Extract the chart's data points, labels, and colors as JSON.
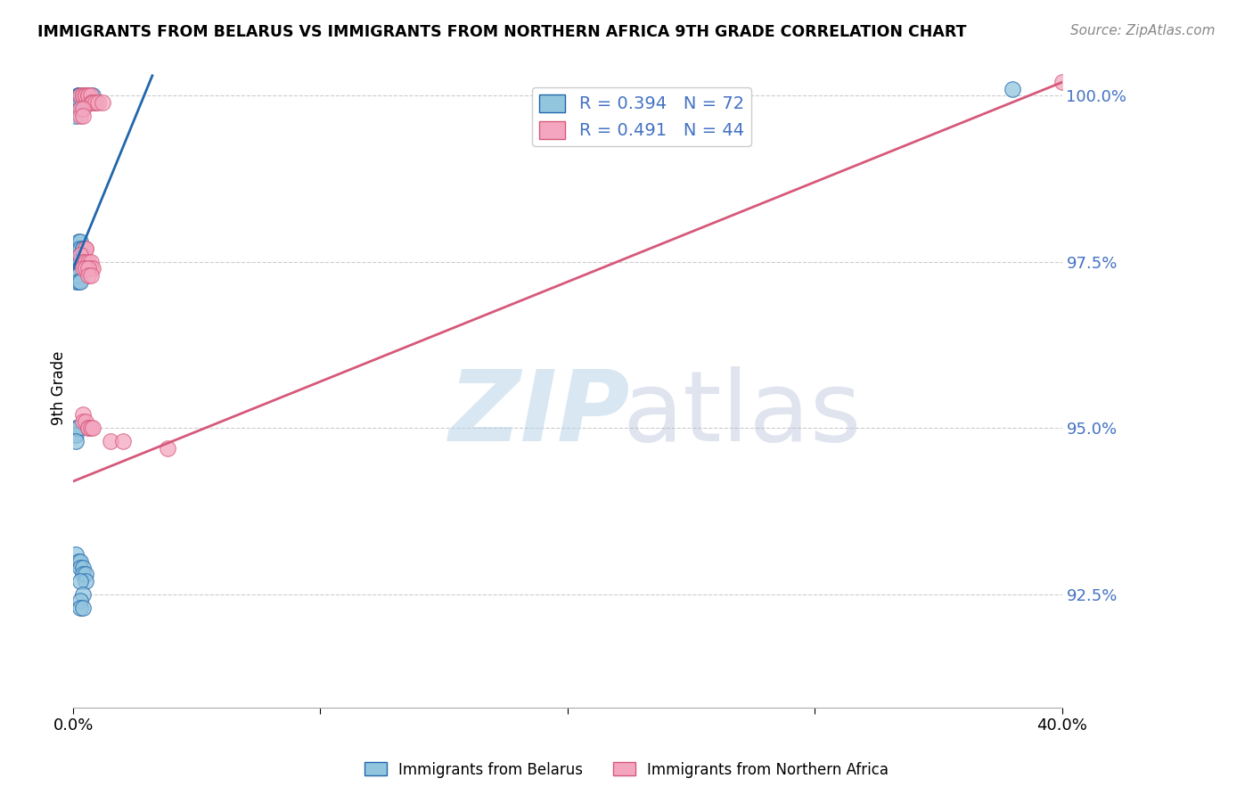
{
  "title": "IMMIGRANTS FROM BELARUS VS IMMIGRANTS FROM NORTHERN AFRICA 9TH GRADE CORRELATION CHART",
  "source": "Source: ZipAtlas.com",
  "ylabel": "9th Grade",
  "x_min": 0.0,
  "x_max": 0.4,
  "y_min": 0.908,
  "y_max": 1.004,
  "y_ticks": [
    0.925,
    0.95,
    0.975,
    1.0
  ],
  "y_tick_labels": [
    "92.5%",
    "95.0%",
    "97.5%",
    "100.0%"
  ],
  "legend_r1": "R = 0.394",
  "legend_n1": "N = 72",
  "legend_r2": "R = 0.491",
  "legend_n2": "N = 44",
  "color_blue": "#92c5de",
  "color_pink": "#f4a6c0",
  "line_blue": "#2166ac",
  "line_pink": "#d6587a",
  "blue_line_x0": 0.0,
  "blue_line_y0": 0.974,
  "blue_line_x1": 0.032,
  "blue_line_y1": 1.003,
  "pink_line_x0": 0.0,
  "pink_line_y0": 0.942,
  "pink_line_x1": 0.4,
  "pink_line_y1": 1.002,
  "blue_x": [
    0.001,
    0.001,
    0.001,
    0.002,
    0.002,
    0.002,
    0.002,
    0.002,
    0.003,
    0.003,
    0.003,
    0.003,
    0.003,
    0.004,
    0.004,
    0.004,
    0.004,
    0.005,
    0.005,
    0.005,
    0.005,
    0.006,
    0.006,
    0.006,
    0.007,
    0.007,
    0.007,
    0.008,
    0.008,
    0.009,
    0.001,
    0.001,
    0.001,
    0.002,
    0.002,
    0.002,
    0.003,
    0.003,
    0.003,
    0.004,
    0.004,
    0.004,
    0.001,
    0.001,
    0.002,
    0.002,
    0.003,
    0.003,
    0.001,
    0.001,
    0.002,
    0.002,
    0.003,
    0.001,
    0.002,
    0.001,
    0.002,
    0.001,
    0.001,
    0.002,
    0.003,
    0.003,
    0.004,
    0.004,
    0.005,
    0.005,
    0.003,
    0.004,
    0.003,
    0.003,
    0.004,
    0.38
  ],
  "blue_y": [
    0.999,
    0.998,
    0.997,
    1.0,
    1.0,
    1.0,
    1.0,
    0.999,
    1.0,
    1.0,
    1.0,
    0.999,
    0.998,
    1.0,
    1.0,
    0.999,
    0.998,
    1.0,
    1.0,
    0.999,
    0.999,
    1.0,
    0.999,
    0.999,
    1.0,
    0.999,
    0.999,
    1.0,
    0.999,
    0.999,
    0.977,
    0.977,
    0.976,
    0.978,
    0.977,
    0.977,
    0.978,
    0.977,
    0.976,
    0.977,
    0.977,
    0.976,
    0.975,
    0.974,
    0.975,
    0.974,
    0.975,
    0.974,
    0.973,
    0.972,
    0.973,
    0.972,
    0.972,
    0.95,
    0.95,
    0.949,
    0.95,
    0.948,
    0.931,
    0.93,
    0.93,
    0.929,
    0.929,
    0.928,
    0.928,
    0.927,
    0.927,
    0.925,
    0.924,
    0.923,
    0.923,
    1.001
  ],
  "pink_x": [
    0.003,
    0.004,
    0.004,
    0.005,
    0.005,
    0.006,
    0.006,
    0.007,
    0.007,
    0.008,
    0.008,
    0.009,
    0.01,
    0.012,
    0.003,
    0.003,
    0.004,
    0.004,
    0.005,
    0.005,
    0.003,
    0.004,
    0.005,
    0.005,
    0.006,
    0.007,
    0.007,
    0.008,
    0.004,
    0.005,
    0.006,
    0.006,
    0.007,
    0.004,
    0.004,
    0.005,
    0.006,
    0.006,
    0.007,
    0.008,
    0.015,
    0.02,
    0.038,
    0.4
  ],
  "pink_y": [
    1.0,
    1.0,
    1.0,
    1.0,
    1.0,
    1.0,
    1.0,
    1.0,
    0.999,
    0.999,
    0.999,
    0.999,
    0.999,
    0.999,
    0.998,
    0.997,
    0.998,
    0.997,
    0.977,
    0.977,
    0.976,
    0.975,
    0.975,
    0.974,
    0.975,
    0.975,
    0.974,
    0.974,
    0.974,
    0.974,
    0.974,
    0.973,
    0.973,
    0.952,
    0.951,
    0.951,
    0.95,
    0.95,
    0.95,
    0.95,
    0.948,
    0.948,
    0.947,
    1.002
  ]
}
